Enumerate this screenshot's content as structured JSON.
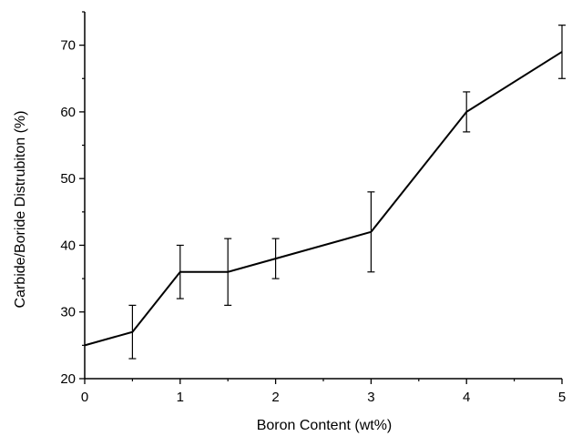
{
  "chart_data": {
    "type": "line",
    "title": "",
    "xlabel": "Boron Content (wt%)",
    "ylabel": "Carbide/Boride Distrubiton (%)",
    "xlim": [
      0,
      5
    ],
    "ylim": [
      20,
      75
    ],
    "x_ticks": [
      0,
      1,
      2,
      3,
      4,
      5
    ],
    "x_tick_labels": [
      "0",
      "1",
      "2",
      "3",
      "4",
      "5"
    ],
    "y_ticks": [
      20,
      30,
      40,
      50,
      60,
      70
    ],
    "y_tick_labels": [
      "20",
      "30",
      "40",
      "50",
      "60",
      "70"
    ],
    "grid": false,
    "legend": "none",
    "line_color": "#000000",
    "series": [
      {
        "x": [
          0,
          0.5,
          1,
          1.5,
          2,
          3,
          4,
          5
        ],
        "y": [
          25,
          27,
          36,
          36,
          38,
          42,
          60,
          69
        ],
        "error_low": [
          null,
          23,
          32,
          31,
          35,
          36,
          57,
          65
        ],
        "error_high": [
          null,
          31,
          40,
          41,
          41,
          48,
          63,
          73
        ]
      }
    ]
  }
}
